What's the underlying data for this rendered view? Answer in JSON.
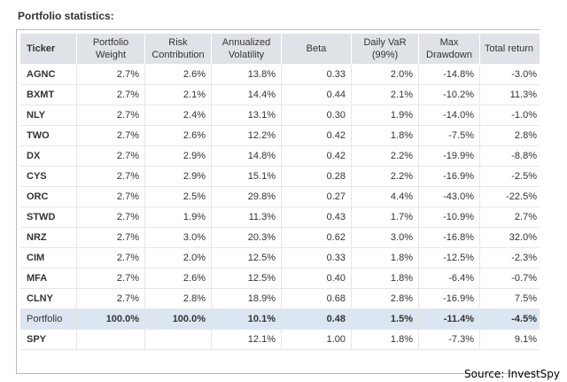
{
  "page": {
    "heading": "Portfolio statistics:",
    "source": "Source: InvestSpy"
  },
  "table": {
    "columns": [
      "Ticker",
      "Portfolio Weight",
      "Risk Contribution",
      "Annualized Volatility",
      "Beta",
      "Daily VaR (99%)",
      "Max Drawdown",
      "Total return"
    ],
    "rows": [
      [
        "AGNC",
        "2.7%",
        "2.6%",
        "13.8%",
        "0.33",
        "2.0%",
        "-14.8%",
        "-3.0%"
      ],
      [
        "BXMT",
        "2.7%",
        "2.1%",
        "14.4%",
        "0.44",
        "2.1%",
        "-10.2%",
        "11.3%"
      ],
      [
        "NLY",
        "2.7%",
        "2.4%",
        "13.1%",
        "0.30",
        "1.9%",
        "-14.0%",
        "-1.0%"
      ],
      [
        "TWO",
        "2.7%",
        "2.6%",
        "12.2%",
        "0.42",
        "1.8%",
        "-7.5%",
        "2.8%"
      ],
      [
        "DX",
        "2.7%",
        "2.9%",
        "14.8%",
        "0.42",
        "2.2%",
        "-19.9%",
        "-8.8%"
      ],
      [
        "CYS",
        "2.7%",
        "2.9%",
        "15.1%",
        "0.28",
        "2.2%",
        "-16.9%",
        "-2.5%"
      ],
      [
        "ORC",
        "2.7%",
        "2.5%",
        "29.8%",
        "0.27",
        "4.4%",
        "-43.0%",
        "-22.5%"
      ],
      [
        "STWD",
        "2.7%",
        "1.9%",
        "11.3%",
        "0.43",
        "1.7%",
        "-10.9%",
        "2.7%"
      ],
      [
        "NRZ",
        "2.7%",
        "3.0%",
        "20.3%",
        "0.62",
        "3.0%",
        "-16.8%",
        "32.0%"
      ],
      [
        "CIM",
        "2.7%",
        "2.0%",
        "12.5%",
        "0.33",
        "1.8%",
        "-12.5%",
        "-2.3%"
      ],
      [
        "MFA",
        "2.7%",
        "2.6%",
        "12.5%",
        "0.40",
        "1.8%",
        "-6.4%",
        "-0.7%"
      ],
      [
        "CLNY",
        "2.7%",
        "2.8%",
        "18.9%",
        "0.68",
        "2.8%",
        "-16.9%",
        "7.5%"
      ],
      [
        "Portfolio",
        "100.0%",
        "100.0%",
        "10.1%",
        "0.48",
        "1.5%",
        "-11.4%",
        "-4.5%"
      ],
      [
        "SPY",
        "",
        "",
        "12.1%",
        "1.00",
        "1.8%",
        "-7.3%",
        "9.1%"
      ]
    ],
    "highlight_row": "Portfolio",
    "colors": {
      "header_bg": "#dfe3e8",
      "highlight_bg": "#dce6f2",
      "text": "#333333"
    }
  }
}
